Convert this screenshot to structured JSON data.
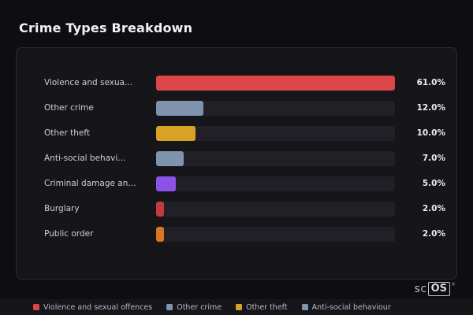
{
  "header": {
    "title": "Crime Types Breakdown"
  },
  "chart_data": {
    "type": "bar",
    "orientation": "horizontal",
    "title": "Crime Types Breakdown",
    "xlabel": "",
    "ylabel": "",
    "xlim": [
      0,
      61
    ],
    "grid": false,
    "legend_position": "bottom",
    "categories": [
      "Violence and sexua...",
      "Other crime",
      "Other theft",
      "Anti-social behavi...",
      "Criminal damage an...",
      "Burglary",
      "Public order"
    ],
    "values": [
      61.0,
      12.0,
      10.0,
      7.0,
      5.0,
      2.0,
      2.0
    ],
    "value_labels": [
      "61.0%",
      "12.0%",
      "10.0%",
      "7.0%",
      "5.0%",
      "2.0%",
      "2.0%"
    ],
    "bar_colors": [
      "#dd4646",
      "#7f93ad",
      "#d9a224",
      "#7f93ad",
      "#8b52e8",
      "#c23b3b",
      "#d9771f"
    ],
    "track_color": "#202026",
    "max_value": 61.0
  },
  "legend": {
    "items": [
      {
        "label": "Violence and sexual offences",
        "color": "#dd4646"
      },
      {
        "label": "Other crime",
        "color": "#7f93ad"
      },
      {
        "label": "Other theft",
        "color": "#d9a224"
      },
      {
        "label": "Anti-social behaviour",
        "color": "#7f93ad"
      }
    ]
  },
  "branding": {
    "prefix": "sc",
    "box": "OS",
    "registered": "®"
  }
}
